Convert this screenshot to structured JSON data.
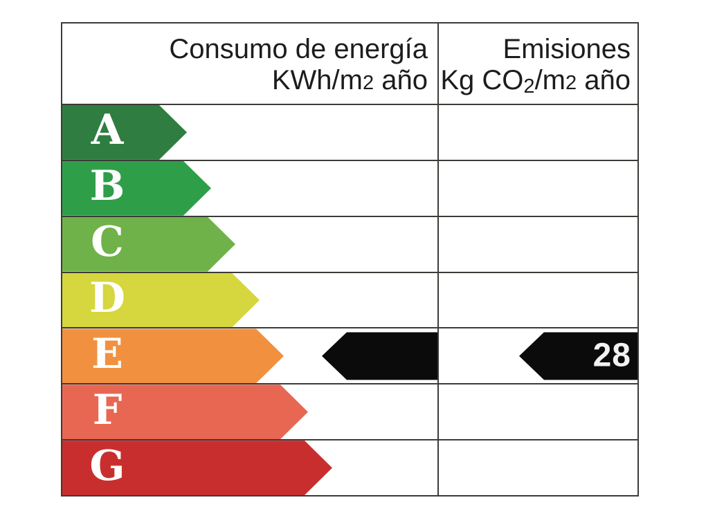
{
  "header": {
    "consumo": {
      "line1": "Consumo de energía",
      "unit_prefix": "KWh/m",
      "unit_small": "2",
      "unit_suffix": " año"
    },
    "emisiones": {
      "line1": "Emisiones",
      "unit_prefix": "Kg CO",
      "unit_sub": "2",
      "unit_mid": "/m",
      "unit_small": "2",
      "unit_suffix": " año"
    }
  },
  "ratings": [
    {
      "letter": "A",
      "color": "#2f7d41"
    },
    {
      "letter": "B",
      "color": "#2f9e49"
    },
    {
      "letter": "C",
      "color": "#6fb24a"
    },
    {
      "letter": "D",
      "color": "#d6d63e"
    },
    {
      "letter": "E",
      "color": "#f19140"
    },
    {
      "letter": "F",
      "color": "#e86752"
    },
    {
      "letter": "G",
      "color": "#c92e2e"
    }
  ],
  "indicators": {
    "arrow_color": "#0b0b0b",
    "row": "E",
    "consumo_value": "",
    "emisiones_value": "28"
  },
  "grid_color": "#3b3b37",
  "chart_data": {
    "type": "table",
    "title": "",
    "columns": [
      "Consumo de energía KWh/m2 año",
      "Emisiones Kg CO2/m2 año"
    ],
    "categories": [
      "A",
      "B",
      "C",
      "D",
      "E",
      "F",
      "G"
    ],
    "category_colors": [
      "#2f7d41",
      "#2f9e49",
      "#6fb24a",
      "#d6d63e",
      "#f19140",
      "#e86752",
      "#c92e2e"
    ],
    "selected_rating": "E",
    "values": {
      "consumo_kwh_m2_ano": "",
      "emisiones_kg_co2_m2_ano": "28"
    },
    "layout_hints": {
      "rating_bars": "left-aligned right-pointing, increasing length A to G",
      "indicator_arrows": "black left-pointing on row E",
      "grid": "on"
    }
  }
}
